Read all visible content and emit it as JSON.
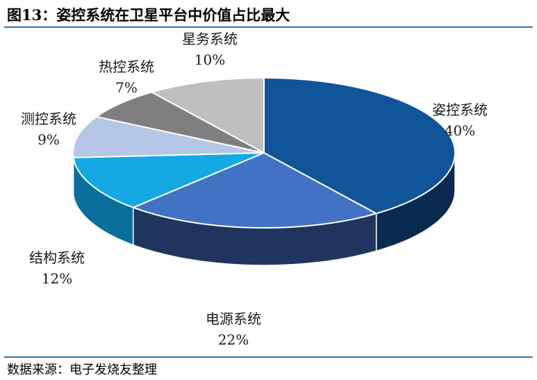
{
  "figure": {
    "title": "图13：姿控系统在卫星平台中价值占比最大",
    "source": "数据来源：电子发烧友整理"
  },
  "chart_data": {
    "type": "pie",
    "style": "3d",
    "title": "",
    "slices": [
      {
        "label": "姿控系统",
        "value": 40,
        "value_text": "40%",
        "color": "#0f5598",
        "side_color": "#0a2b4f"
      },
      {
        "label": "电源系统",
        "value": 22,
        "value_text": "22%",
        "color": "#4272c3",
        "side_color": "#20355e"
      },
      {
        "label": "结构系统",
        "value": 12,
        "value_text": "12%",
        "color": "#14a8e5",
        "side_color": "#0b6f9e"
      },
      {
        "label": "测控系统",
        "value": 9,
        "value_text": "9%",
        "color": "#b4c7e6",
        "side_color": "#8a9cbb"
      },
      {
        "label": "热控系统",
        "value": 7,
        "value_text": "7%",
        "color": "#7f7f7f",
        "side_color": "#595959"
      },
      {
        "label": "星务系统",
        "value": 10,
        "value_text": "10%",
        "color": "#bfbfbf",
        "side_color": "#8c8c8c"
      }
    ]
  }
}
